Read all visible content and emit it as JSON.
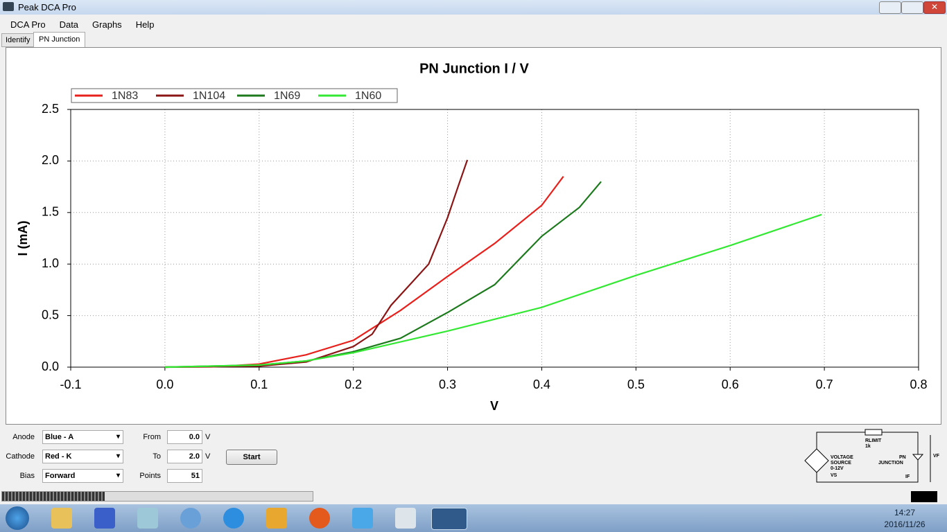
{
  "window": {
    "title": "Peak DCA Pro"
  },
  "menu": [
    "DCA Pro",
    "Data",
    "Graphs",
    "Help"
  ],
  "tabs": [
    "Identify",
    "PN Junction"
  ],
  "chart_data": {
    "type": "line",
    "title": "PN Junction I / V",
    "x_label": "V",
    "y_label": "I (mA)",
    "xlim": [
      -0.1,
      0.8
    ],
    "xticks": [
      -0.1,
      {
        "value": 0,
        "label": "0.0"
      },
      0.1,
      0.2,
      0.3,
      0.4,
      0.5,
      0.6,
      0.7,
      0.8
    ],
    "ylim": [
      0,
      2.5
    ],
    "yticks": [
      {
        "value": 0,
        "label": "0.0"
      },
      0.5,
      {
        "value": 1,
        "label": "1.0"
      },
      1.5,
      {
        "value": 2,
        "label": "2.0"
      },
      2.5
    ],
    "grid": true,
    "legend": "top-left",
    "series": [
      {
        "name": "1N83",
        "color": "#e8201c",
        "x": [
          0,
          0.05,
          0.1,
          0.15,
          0.2,
          0.25,
          0.3,
          0.35,
          0.4,
          0.423
        ],
        "values": [
          0,
          0.003,
          0.03,
          0.12,
          0.26,
          0.55,
          0.88,
          1.2,
          1.57,
          1.85
        ]
      },
      {
        "name": "1N104",
        "color": "#8b1414",
        "x": [
          0,
          0.1,
          0.15,
          0.2,
          0.22,
          0.24,
          0.26,
          0.28,
          0.3,
          0.31,
          0.321
        ],
        "values": [
          0,
          0.01,
          0.05,
          0.2,
          0.32,
          0.6,
          0.8,
          1.0,
          1.45,
          1.72,
          2.01
        ]
      },
      {
        "name": "1N69",
        "color": "#1c7a1c",
        "x": [
          0,
          0.1,
          0.15,
          0.2,
          0.25,
          0.3,
          0.35,
          0.4,
          0.44,
          0.463
        ],
        "values": [
          0,
          0.02,
          0.06,
          0.15,
          0.28,
          0.53,
          0.8,
          1.27,
          1.55,
          1.8
        ]
      },
      {
        "name": "1N60",
        "color": "#33e833",
        "x": [
          0,
          0.1,
          0.15,
          0.2,
          0.3,
          0.4,
          0.5,
          0.6,
          0.697
        ],
        "values": [
          0,
          0.02,
          0.06,
          0.14,
          0.35,
          0.58,
          0.89,
          1.18,
          1.48
        ]
      }
    ]
  },
  "controls": {
    "anode": {
      "label": "Anode",
      "value": "Blue - A"
    },
    "cathode": {
      "label": "Cathode",
      "value": "Red - K"
    },
    "bias": {
      "label": "Bias",
      "value": "Forward"
    },
    "from": {
      "label": "From",
      "value": "0.0",
      "unit": "V"
    },
    "to": {
      "label": "To",
      "value": "2.0",
      "unit": "V"
    },
    "points": {
      "label": "Points",
      "value": "51"
    },
    "start": "Start"
  },
  "diagram": {
    "rlimit": "RLIMIT",
    "resistor": "1k",
    "source": "VOLTAGE",
    "source2": "SOURCE",
    "source3": "0-12V",
    "vs": "VS",
    "pn": "PN",
    "pn2": "JUNCTION",
    "if": "IF",
    "vf": "VF"
  },
  "taskbar": {
    "time": "14:27",
    "date": "2016/11/26"
  }
}
